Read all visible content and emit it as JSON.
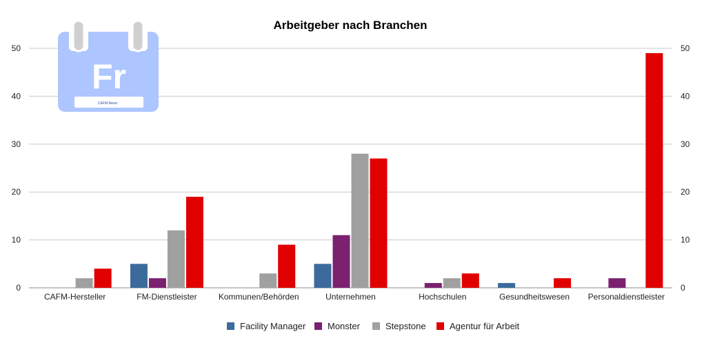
{
  "logo": {
    "letters": "Fr",
    "small_text": "CAFM-News",
    "color": "#aec6ff"
  },
  "chart_data": {
    "type": "bar",
    "title": "Arbeitgeber nach Branchen",
    "categories": [
      "CAFM-Hersteller",
      "FM-Dienstleister",
      "Kommunen/Behörden",
      "Unternehmen",
      "Hochschulen",
      "Gesundheitswesen",
      "Personaldienstleister"
    ],
    "series": [
      {
        "name": "Facility Manager",
        "color": "#3d6a9c",
        "values": [
          0,
          5,
          0,
          5,
          0,
          1,
          0
        ]
      },
      {
        "name": "Monster",
        "color": "#7b2170",
        "values": [
          0,
          2,
          0,
          11,
          1,
          0,
          2
        ]
      },
      {
        "name": "Stepstone",
        "color": "#a0a0a0",
        "values": [
          2,
          12,
          3,
          28,
          2,
          0,
          0
        ]
      },
      {
        "name": "Agentur für Arbeit",
        "color": "#e00000",
        "values": [
          4,
          19,
          9,
          27,
          3,
          2,
          49
        ]
      }
    ],
    "ylim": [
      0,
      50
    ],
    "yticks": [
      0,
      10,
      20,
      30,
      40,
      50
    ],
    "y_axis_right": true,
    "grid": true,
    "legend_position": "bottom"
  }
}
